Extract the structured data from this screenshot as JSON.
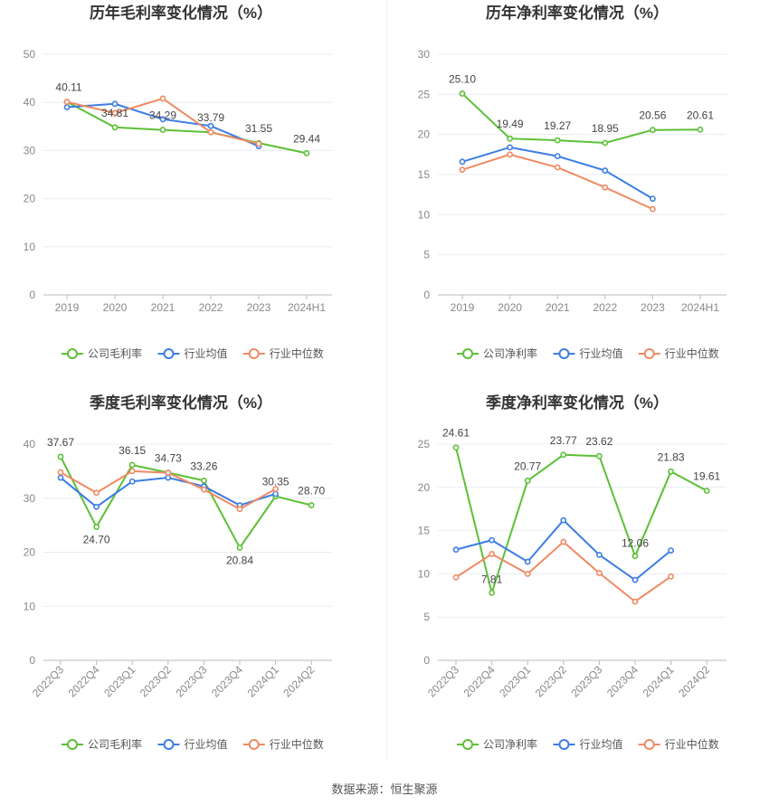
{
  "footer": {
    "source": "数据来源：恒生聚源"
  },
  "colors": {
    "company": "#5cc036",
    "industry_avg": "#3d7de4",
    "industry_median": "#f08a63",
    "grid": "#e9ecf2",
    "axis": "#bbbbbb",
    "text": "#666666"
  },
  "chart_data": [
    {
      "type": "line",
      "title": "历年毛利率变化情况（%）",
      "categories": [
        "2019",
        "2020",
        "2021",
        "2022",
        "2023",
        "2024H1"
      ],
      "ylim": [
        0,
        50
      ],
      "yticks": [
        0,
        10,
        20,
        30,
        40,
        50
      ],
      "rotate_labels": false,
      "grid": true,
      "legend_position": "bottom",
      "series": [
        {
          "name": "公司毛利率",
          "color": "#5cc036",
          "values": [
            40.11,
            34.81,
            34.29,
            33.79,
            31.55,
            29.44
          ],
          "labels": [
            "40.11",
            "34.81",
            "34.29",
            "33.79",
            "31.55",
            "29.44"
          ]
        },
        {
          "name": "行业均值",
          "color": "#3d7de4",
          "values": [
            39.0,
            39.7,
            36.5,
            35.1,
            30.9,
            null
          ],
          "labels": []
        },
        {
          "name": "行业中位数",
          "color": "#f08a63",
          "values": [
            40.1,
            37.8,
            40.8,
            33.8,
            31.4,
            null
          ],
          "labels": []
        }
      ]
    },
    {
      "type": "line",
      "title": "历年净利率变化情况（%）",
      "categories": [
        "2019",
        "2020",
        "2021",
        "2022",
        "2023",
        "2024H1"
      ],
      "ylim": [
        0,
        30
      ],
      "yticks": [
        0,
        5,
        10,
        15,
        20,
        25,
        30
      ],
      "rotate_labels": false,
      "grid": true,
      "legend_position": "bottom",
      "series": [
        {
          "name": "公司净利率",
          "color": "#5cc036",
          "values": [
            25.1,
            19.49,
            19.27,
            18.95,
            20.56,
            20.61
          ],
          "labels": [
            "25.10",
            "19.49",
            "19.27",
            "18.95",
            "20.56",
            "20.61"
          ]
        },
        {
          "name": "行业均值",
          "color": "#3d7de4",
          "values": [
            16.6,
            18.4,
            17.3,
            15.5,
            12.0,
            null
          ],
          "labels": []
        },
        {
          "name": "行业中位数",
          "color": "#f08a63",
          "values": [
            15.6,
            17.5,
            15.9,
            13.4,
            10.7,
            null
          ],
          "labels": []
        }
      ]
    },
    {
      "type": "line",
      "title": "季度毛利率变化情况（%）",
      "categories": [
        "2022Q3",
        "2022Q4",
        "2023Q1",
        "2023Q2",
        "2023Q3",
        "2023Q4",
        "2024Q1",
        "2024Q2"
      ],
      "ylim": [
        0,
        40
      ],
      "yticks": [
        0,
        10,
        20,
        30,
        40
      ],
      "rotate_labels": true,
      "grid": true,
      "legend_position": "bottom",
      "series": [
        {
          "name": "公司毛利率",
          "color": "#5cc036",
          "values": [
            37.67,
            24.7,
            36.15,
            34.73,
            33.26,
            20.84,
            30.35,
            28.7
          ],
          "labels": [
            "37.67",
            "24.70",
            "36.15",
            "34.73",
            "33.26",
            "20.84",
            "30.35",
            "28.70"
          ]
        },
        {
          "name": "行业均值",
          "color": "#3d7de4",
          "values": [
            33.8,
            28.4,
            33.1,
            33.8,
            32.2,
            28.7,
            30.8,
            null
          ],
          "labels": []
        },
        {
          "name": "行业中位数",
          "color": "#f08a63",
          "values": [
            34.8,
            31.0,
            35.0,
            34.7,
            31.6,
            28.0,
            31.7,
            null
          ],
          "labels": []
        }
      ]
    },
    {
      "type": "line",
      "title": "季度净利率变化情况（%）",
      "categories": [
        "2022Q3",
        "2022Q4",
        "2023Q1",
        "2023Q2",
        "2023Q3",
        "2023Q4",
        "2024Q1",
        "2024Q2"
      ],
      "ylim": [
        0,
        25
      ],
      "yticks": [
        0,
        5,
        10,
        15,
        20,
        25
      ],
      "rotate_labels": true,
      "grid": true,
      "legend_position": "bottom",
      "series": [
        {
          "name": "公司净利率",
          "color": "#5cc036",
          "values": [
            24.61,
            7.81,
            20.77,
            23.77,
            23.62,
            12.06,
            21.83,
            19.61
          ],
          "labels": [
            "24.61",
            "7.81",
            "20.77",
            "23.77",
            "23.62",
            "12.06",
            "21.83",
            "19.61"
          ]
        },
        {
          "name": "行业均值",
          "color": "#3d7de4",
          "values": [
            12.8,
            13.9,
            11.4,
            16.2,
            12.2,
            9.3,
            12.7,
            null
          ],
          "labels": []
        },
        {
          "name": "行业中位数",
          "color": "#f08a63",
          "values": [
            9.6,
            12.3,
            10.0,
            13.7,
            10.1,
            6.8,
            9.7,
            null
          ],
          "labels": []
        }
      ]
    }
  ]
}
